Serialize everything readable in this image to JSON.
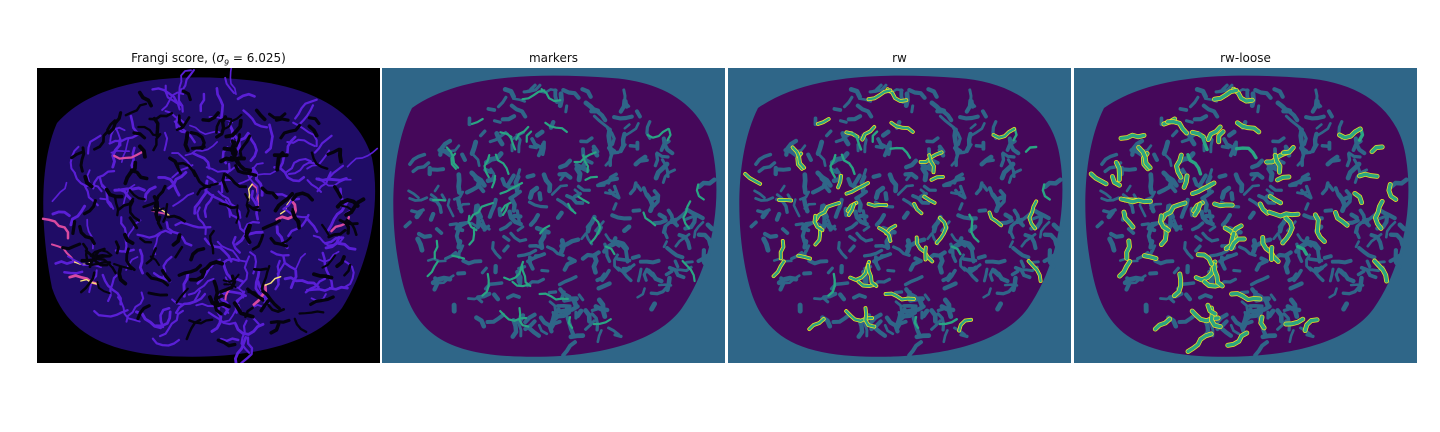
{
  "panels": [
    {
      "title_prefix": "Frangi score, (",
      "sigma_symbol": "σ",
      "sigma_sub": "9",
      "sigma_value": " = 6.025)"
    },
    {
      "title": "markers"
    },
    {
      "title": "rw"
    },
    {
      "title": "rw-loose"
    }
  ],
  "colors": {
    "frangi_background": "#000000",
    "frangi_base": "#1f0c66",
    "frangi_vessel": "#5a1fd6",
    "frangi_hot": "#d94aa0",
    "frangi_peak": "#fbe37a",
    "seg_background": "#2f6688",
    "seg_tissue": "#45085a",
    "seg_marker": "#2aa583",
    "seg_yellow": "#f2e51c"
  }
}
